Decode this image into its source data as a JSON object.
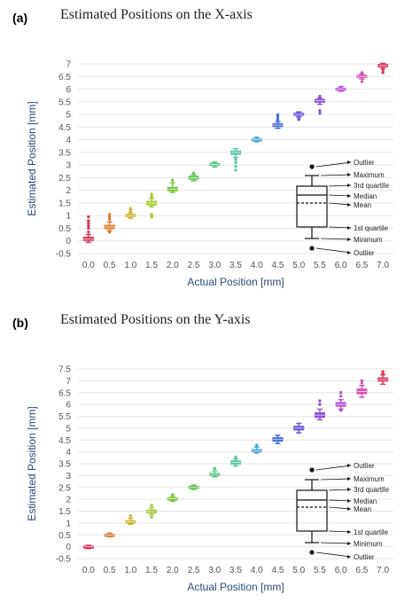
{
  "chart_data": [
    {
      "type": "box",
      "panel": "(a)",
      "title": "Estimated Positions on the X-axis",
      "xlabel": "Actual Position [mm]",
      "ylabel": "Estimated Position [mm]",
      "ylim": [
        -0.5,
        7
      ],
      "yticks": [
        "-0.5",
        "0",
        "0.5",
        "1",
        "1.5",
        "2",
        "2.5",
        "3",
        "3.5",
        "4",
        "4.5",
        "5",
        "5.5",
        "6",
        "6.5",
        "7"
      ],
      "categories": [
        "0.0",
        "0.5",
        "1.0",
        "1.5",
        "2.0",
        "2.5",
        "3.0",
        "3.5",
        "4.0",
        "4.5",
        "5.0",
        "5.5",
        "6.0",
        "6.5",
        "7.0"
      ],
      "colors": [
        "#d9385b",
        "#d9823a",
        "#cfb22e",
        "#a8c93a",
        "#78c83a",
        "#66c25c",
        "#5ec78a",
        "#5cc7a8",
        "#4aa6d8",
        "#4a6fd8",
        "#6a55d8",
        "#8e55d8",
        "#b455d8",
        "#d255b0",
        "#d63a5e"
      ],
      "boxes": [
        {
          "min": -0.05,
          "q1": 0.02,
          "median": 0.08,
          "q3": 0.15,
          "max": 0.25,
          "outliers": [
            0.35,
            0.5,
            0.6,
            0.7,
            0.8,
            0.95
          ]
        },
        {
          "min": 0.4,
          "q1": 0.48,
          "median": 0.55,
          "q3": 0.62,
          "max": 0.75,
          "outliers": [
            0.85,
            0.95,
            1.05,
            0.35
          ]
        },
        {
          "min": 0.9,
          "q1": 0.96,
          "median": 1.0,
          "q3": 1.05,
          "max": 1.12,
          "outliers": [
            1.2,
            1.28
          ]
        },
        {
          "min": 1.35,
          "q1": 1.42,
          "median": 1.5,
          "q3": 1.57,
          "max": 1.68,
          "outliers": [
            1.75,
            1.85,
            1.05,
            0.95
          ]
        },
        {
          "min": 1.92,
          "q1": 1.98,
          "median": 2.05,
          "q3": 2.12,
          "max": 2.3,
          "outliers": [
            2.4
          ]
        },
        {
          "min": 2.38,
          "q1": 2.44,
          "median": 2.5,
          "q3": 2.56,
          "max": 2.62,
          "outliers": [
            2.68
          ]
        },
        {
          "min": 2.92,
          "q1": 2.98,
          "median": 3.02,
          "q3": 3.07,
          "max": 3.12,
          "outliers": []
        },
        {
          "min": 3.3,
          "q1": 3.42,
          "median": 3.5,
          "q3": 3.56,
          "max": 3.65,
          "outliers": [
            3.22,
            3.1,
            2.95,
            2.8
          ]
        },
        {
          "min": 3.92,
          "q1": 3.96,
          "median": 4.0,
          "q3": 4.04,
          "max": 4.1,
          "outliers": []
        },
        {
          "min": 4.45,
          "q1": 4.52,
          "median": 4.58,
          "q3": 4.64,
          "max": 4.72,
          "outliers": [
            4.8,
            4.9,
            4.98
          ]
        },
        {
          "min": 4.9,
          "q1": 4.96,
          "median": 5.0,
          "q3": 5.05,
          "max": 5.1,
          "outliers": [
            4.8,
            4.82
          ]
        },
        {
          "min": 5.4,
          "q1": 5.48,
          "median": 5.55,
          "q3": 5.6,
          "max": 5.65,
          "outliers": [
            5.72,
            5.15,
            5.05
          ]
        },
        {
          "min": 5.92,
          "q1": 5.96,
          "median": 6.0,
          "q3": 6.04,
          "max": 6.1,
          "outliers": []
        },
        {
          "min": 6.4,
          "q1": 6.46,
          "median": 6.5,
          "q3": 6.55,
          "max": 6.6,
          "outliers": [
            6.65,
            6.3
          ]
        },
        {
          "min": 6.82,
          "q1": 6.88,
          "median": 6.93,
          "q3": 6.98,
          "max": 7.02,
          "outliers": [
            6.75,
            6.65
          ]
        }
      ],
      "legend": {
        "items": [
          "Outlier",
          "Maximum",
          "3rd quartile",
          "Median",
          "Mean",
          "1st quartile",
          "Minimum",
          "Outlier"
        ]
      }
    },
    {
      "type": "box",
      "panel": "(b)",
      "title": "Estimated Positions on the Y-axis",
      "xlabel": "Actual Position [mm]",
      "ylabel": "Estimated Position [mm]",
      "ylim": [
        -0.5,
        7.5
      ],
      "yticks": [
        "-0.5",
        "0",
        "0.5",
        "1",
        "1.5",
        "2",
        "2.5",
        "3",
        "3.5",
        "4",
        "4.5",
        "5",
        "5.5",
        "6",
        "6.5",
        "7",
        "7.5"
      ],
      "categories": [
        "0.0",
        "0.5",
        "1.0",
        "1.5",
        "2.0",
        "2.5",
        "3.0",
        "3.5",
        "4.0",
        "4.5",
        "5.0",
        "5.5",
        "6.0",
        "6.5",
        "7.0"
      ],
      "colors": [
        "#d9385b",
        "#d9823a",
        "#cfb22e",
        "#a8c93a",
        "#78c83a",
        "#66c25c",
        "#5ec78a",
        "#5cc7a8",
        "#4aa6d8",
        "#4a6fd8",
        "#6a55d8",
        "#8e55d8",
        "#b455d8",
        "#d255b0",
        "#d63a5e"
      ],
      "boxes": [
        {
          "min": -0.08,
          "q1": -0.04,
          "median": 0.0,
          "q3": 0.03,
          "max": 0.06,
          "outliers": []
        },
        {
          "min": 0.42,
          "q1": 0.46,
          "median": 0.5,
          "q3": 0.53,
          "max": 0.57,
          "outliers": []
        },
        {
          "min": 0.95,
          "q1": 1.0,
          "median": 1.05,
          "q3": 1.1,
          "max": 1.2,
          "outliers": [
            1.3
          ]
        },
        {
          "min": 1.35,
          "q1": 1.42,
          "median": 1.48,
          "q3": 1.55,
          "max": 1.65,
          "outliers": [
            1.75,
            1.25
          ]
        },
        {
          "min": 1.92,
          "q1": 1.97,
          "median": 2.02,
          "q3": 2.06,
          "max": 2.12,
          "outliers": [
            2.2
          ]
        },
        {
          "min": 2.42,
          "q1": 2.47,
          "median": 2.5,
          "q3": 2.55,
          "max": 2.6,
          "outliers": []
        },
        {
          "min": 2.95,
          "q1": 3.0,
          "median": 3.05,
          "q3": 3.1,
          "max": 3.2,
          "outliers": [
            3.3
          ]
        },
        {
          "min": 3.4,
          "q1": 3.48,
          "median": 3.55,
          "q3": 3.62,
          "max": 3.7,
          "outliers": [
            3.78
          ]
        },
        {
          "min": 3.95,
          "q1": 4.0,
          "median": 4.05,
          "q3": 4.1,
          "max": 4.2,
          "outliers": [
            4.28
          ]
        },
        {
          "min": 4.35,
          "q1": 4.45,
          "median": 4.52,
          "q3": 4.6,
          "max": 4.7,
          "outliers": []
        },
        {
          "min": 4.8,
          "q1": 4.92,
          "median": 5.0,
          "q3": 5.08,
          "max": 5.2,
          "outliers": []
        },
        {
          "min": 5.35,
          "q1": 5.45,
          "median": 5.55,
          "q3": 5.65,
          "max": 5.8,
          "outliers": [
            6.0,
            6.15
          ]
        },
        {
          "min": 5.8,
          "q1": 5.92,
          "median": 6.0,
          "q3": 6.08,
          "max": 6.2,
          "outliers": [
            6.35,
            6.5,
            5.75
          ]
        },
        {
          "min": 6.3,
          "q1": 6.45,
          "median": 6.55,
          "q3": 6.65,
          "max": 6.8,
          "outliers": [
            6.9,
            7.0
          ]
        },
        {
          "min": 6.85,
          "q1": 6.98,
          "median": 7.05,
          "q3": 7.12,
          "max": 7.25,
          "outliers": [
            7.32,
            7.38
          ]
        }
      ],
      "legend": {
        "items": [
          "Outlier",
          "Maximum",
          "3rd quartile",
          "Median",
          "Mean",
          "1st quartile",
          "Minimum",
          "Outlier"
        ]
      }
    }
  ]
}
